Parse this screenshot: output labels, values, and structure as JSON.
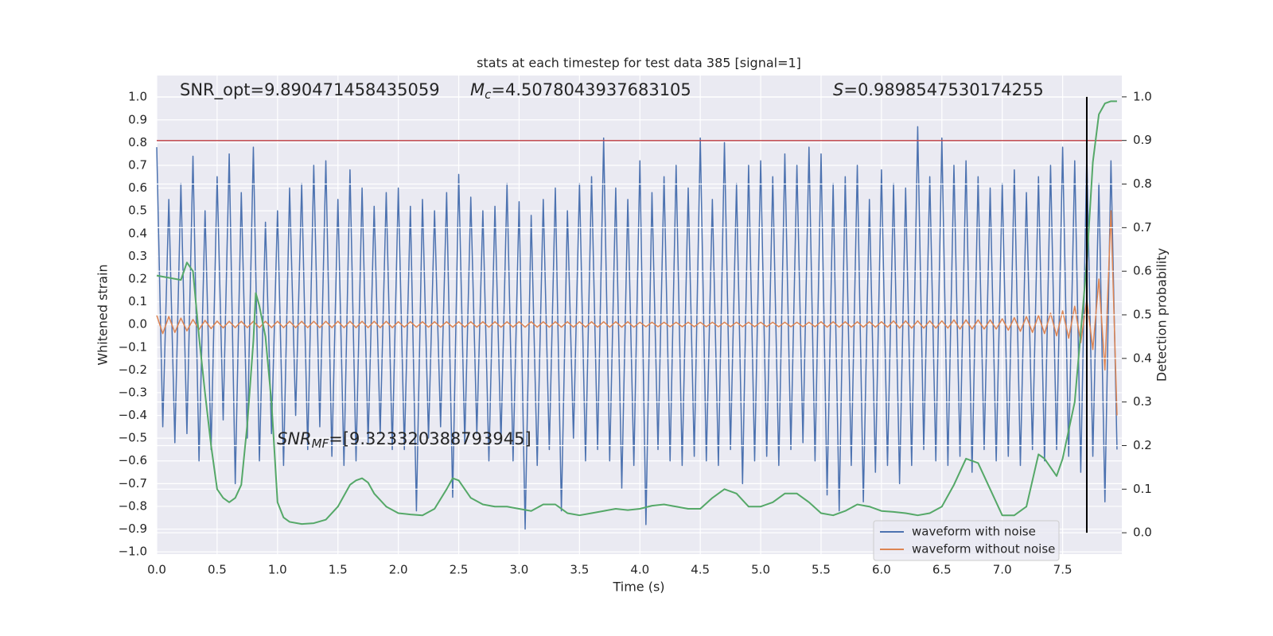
{
  "chart_data": {
    "type": "line",
    "title": "stats at each timestep for test data 385 [signal=1]",
    "xlabel": "Time (s)",
    "ylabel": "Whitened strain",
    "y2label": "Detection probability",
    "grid": true,
    "legend": "lower right",
    "xlim": [
      0,
      7.99
    ],
    "ylim": [
      -1.01,
      1.095
    ],
    "y2lim": [
      -0.049,
      1.049
    ],
    "xticks": [
      {
        "value": 0,
        "label": "0.0"
      },
      {
        "value": 0.5,
        "label": "0.5"
      },
      {
        "value": 1,
        "label": "1.0"
      },
      {
        "value": 1.5,
        "label": "1.5"
      },
      {
        "value": 2,
        "label": "2.0"
      },
      {
        "value": 2.5,
        "label": "2.5"
      },
      {
        "value": 3,
        "label": "3.0"
      },
      {
        "value": 3.5,
        "label": "3.5"
      },
      {
        "value": 4,
        "label": "4.0"
      },
      {
        "value": 4.5,
        "label": "4.5"
      },
      {
        "value": 5,
        "label": "5.0"
      },
      {
        "value": 5.5,
        "label": "5.5"
      },
      {
        "value": 6,
        "label": "6.0"
      },
      {
        "value": 6.5,
        "label": "6.5"
      },
      {
        "value": 7,
        "label": "7.0"
      },
      {
        "value": 7.5,
        "label": "7.5"
      }
    ],
    "yticks": [
      {
        "value": -1,
        "label": "−1.0"
      },
      {
        "value": -0.9,
        "label": "−0.9"
      },
      {
        "value": -0.8,
        "label": "−0.8"
      },
      {
        "value": -0.7,
        "label": "−0.7"
      },
      {
        "value": -0.6,
        "label": "−0.6"
      },
      {
        "value": -0.5,
        "label": "−0.5"
      },
      {
        "value": -0.4,
        "label": "−0.4"
      },
      {
        "value": -0.3,
        "label": "−0.3"
      },
      {
        "value": -0.2,
        "label": "−0.2"
      },
      {
        "value": -0.1,
        "label": "−0.1"
      },
      {
        "value": 0,
        "label": "0.0"
      },
      {
        "value": 0.1,
        "label": "0.1"
      },
      {
        "value": 0.2,
        "label": "0.2"
      },
      {
        "value": 0.3,
        "label": "0.3"
      },
      {
        "value": 0.4,
        "label": "0.4"
      },
      {
        "value": 0.5,
        "label": "0.5"
      },
      {
        "value": 0.6,
        "label": "0.6"
      },
      {
        "value": 0.7,
        "label": "0.7"
      },
      {
        "value": 0.8,
        "label": "0.8"
      },
      {
        "value": 0.9,
        "label": "0.9"
      },
      {
        "value": 1,
        "label": "1.0"
      }
    ],
    "y2ticks": [
      {
        "value": 0,
        "label": "0.0"
      },
      {
        "value": 0.1,
        "label": "0.1"
      },
      {
        "value": 0.2,
        "label": "0.2"
      },
      {
        "value": 0.3,
        "label": "0.3"
      },
      {
        "value": 0.4,
        "label": "0.4"
      },
      {
        "value": 0.5,
        "label": "0.5"
      },
      {
        "value": 0.6,
        "label": "0.6"
      },
      {
        "value": 0.7,
        "label": "0.7"
      },
      {
        "value": 0.8,
        "label": "0.8"
      },
      {
        "value": 0.9,
        "label": "0.9"
      },
      {
        "value": 1,
        "label": "1.0"
      }
    ],
    "x": [
      0,
      0.05,
      0.1,
      0.15,
      0.2,
      0.25,
      0.3,
      0.35,
      0.4,
      0.45,
      0.5,
      0.55,
      0.6,
      0.65,
      0.7,
      0.75,
      0.8,
      0.85,
      0.9,
      0.95,
      1,
      1.05,
      1.1,
      1.15,
      1.2,
      1.25,
      1.3,
      1.35,
      1.4,
      1.45,
      1.5,
      1.55,
      1.6,
      1.65,
      1.7,
      1.75,
      1.8,
      1.85,
      1.9,
      1.95,
      2,
      2.05,
      2.1,
      2.15,
      2.2,
      2.25,
      2.3,
      2.35,
      2.4,
      2.45,
      2.5,
      2.55,
      2.6,
      2.65,
      2.7,
      2.75,
      2.8,
      2.85,
      2.9,
      2.95,
      3,
      3.05,
      3.1,
      3.15,
      3.2,
      3.25,
      3.3,
      3.35,
      3.4,
      3.45,
      3.5,
      3.55,
      3.6,
      3.65,
      3.7,
      3.75,
      3.8,
      3.85,
      3.9,
      3.95,
      4,
      4.05,
      4.1,
      4.15,
      4.2,
      4.25,
      4.3,
      4.35,
      4.4,
      4.45,
      4.5,
      4.55,
      4.6,
      4.65,
      4.7,
      4.75,
      4.8,
      4.85,
      4.9,
      4.95,
      5,
      5.05,
      5.1,
      5.15,
      5.2,
      5.25,
      5.3,
      5.35,
      5.4,
      5.45,
      5.5,
      5.55,
      5.6,
      5.65,
      5.7,
      5.75,
      5.8,
      5.85,
      5.9,
      5.95,
      6,
      6.05,
      6.1,
      6.15,
      6.2,
      6.25,
      6.3,
      6.35,
      6.4,
      6.45,
      6.5,
      6.55,
      6.6,
      6.65,
      6.7,
      6.75,
      6.8,
      6.85,
      6.9,
      6.95,
      7,
      7.05,
      7.1,
      7.15,
      7.2,
      7.25,
      7.3,
      7.35,
      7.4,
      7.45,
      7.5,
      7.55,
      7.6,
      7.65,
      7.7,
      7.75,
      7.8,
      7.85,
      7.9,
      7.95
    ],
    "series": [
      {
        "name": "waveform with noise",
        "color": "#4c72b0",
        "values": [
          0.78,
          -0.45,
          0.55,
          -0.52,
          0.62,
          -0.48,
          0.74,
          -0.6,
          0.5,
          -0.55,
          0.65,
          -0.42,
          0.75,
          -0.7,
          0.58,
          -0.5,
          0.78,
          -0.6,
          0.45,
          -0.48,
          0.5,
          -0.62,
          0.6,
          -0.4,
          0.62,
          -0.55,
          0.7,
          -0.45,
          0.72,
          -0.58,
          0.55,
          -0.62,
          0.68,
          -0.6,
          0.6,
          -0.52,
          0.52,
          -0.48,
          0.58,
          -0.55,
          0.6,
          -0.55,
          0.52,
          -0.82,
          0.55,
          -0.5,
          0.5,
          -0.45,
          0.58,
          -0.76,
          0.66,
          -0.52,
          0.56,
          -0.48,
          0.5,
          -0.6,
          0.52,
          -0.52,
          0.62,
          -0.6,
          0.54,
          -0.9,
          0.48,
          -0.62,
          0.55,
          -0.55,
          0.6,
          -0.82,
          0.5,
          -0.5,
          0.62,
          -0.6,
          0.65,
          -0.55,
          0.82,
          -0.6,
          0.6,
          -0.72,
          0.55,
          -0.62,
          0.72,
          -0.88,
          0.58,
          -0.55,
          0.65,
          -0.6,
          0.7,
          -0.62,
          0.6,
          -0.58,
          0.82,
          -0.6,
          0.55,
          -0.62,
          0.8,
          -0.55,
          0.62,
          -0.7,
          0.7,
          -0.6,
          0.72,
          -0.58,
          0.65,
          -0.62,
          0.75,
          -0.55,
          0.7,
          -0.52,
          0.78,
          -0.6,
          0.75,
          -0.75,
          0.62,
          -0.82,
          0.65,
          -0.62,
          0.7,
          -0.78,
          0.55,
          -0.65,
          0.68,
          -0.62,
          0.62,
          -0.7,
          0.6,
          -0.62,
          0.87,
          -0.55,
          0.65,
          -0.6,
          0.82,
          -0.62,
          0.7,
          -0.58,
          0.72,
          -0.65,
          0.65,
          -0.55,
          0.6,
          -0.6,
          0.62,
          -0.58,
          0.68,
          -0.62,
          0.58,
          -0.55,
          0.65,
          -0.6,
          0.7,
          -0.55,
          0.78,
          -0.58,
          0.72,
          -0.65,
          0.75,
          -0.58,
          0.62,
          -0.78,
          0.72,
          -0.55
        ]
      },
      {
        "name": "waveform without noise",
        "color": "#dd8452",
        "values": [
          0.04,
          -0.04,
          0.035,
          -0.035,
          0.028,
          -0.028,
          0.022,
          -0.022,
          0.018,
          -0.018,
          0.015,
          -0.015,
          0.014,
          -0.014,
          0.014,
          -0.014,
          0.014,
          -0.014,
          0.014,
          -0.014,
          0.014,
          -0.014,
          0.014,
          -0.014,
          0.014,
          -0.014,
          0.014,
          -0.014,
          0.014,
          -0.014,
          0.014,
          -0.014,
          0.014,
          -0.014,
          0.014,
          -0.014,
          0.014,
          -0.014,
          0.014,
          -0.014,
          0.012,
          -0.012,
          0.012,
          -0.012,
          0.012,
          -0.012,
          0.012,
          -0.012,
          0.012,
          -0.012,
          0.012,
          -0.012,
          0.012,
          -0.012,
          0.012,
          -0.012,
          0.012,
          -0.012,
          0.012,
          -0.012,
          0.012,
          -0.012,
          0.012,
          -0.012,
          0.012,
          -0.012,
          0.012,
          -0.012,
          0.012,
          -0.012,
          0.012,
          -0.012,
          0.012,
          -0.012,
          0.012,
          -0.012,
          0.012,
          -0.012,
          0.012,
          -0.012,
          0.01,
          -0.01,
          0.01,
          -0.01,
          0.01,
          -0.01,
          0.01,
          -0.01,
          0.01,
          -0.01,
          0.01,
          -0.01,
          0.01,
          -0.01,
          0.01,
          -0.01,
          0.01,
          -0.01,
          0.01,
          -0.01,
          0.01,
          -0.01,
          0.01,
          -0.01,
          0.01,
          -0.01,
          0.01,
          -0.01,
          0.01,
          -0.01,
          0.012,
          -0.012,
          0.012,
          -0.012,
          0.012,
          -0.012,
          0.012,
          -0.012,
          0.012,
          -0.012,
          0.012,
          -0.012,
          0.016,
          -0.016,
          0.016,
          -0.016,
          0.016,
          -0.016,
          0.016,
          -0.016,
          0.016,
          -0.016,
          0.02,
          -0.02,
          0.02,
          -0.02,
          0.02,
          -0.02,
          0.02,
          -0.02,
          0.025,
          -0.025,
          0.03,
          -0.03,
          0.035,
          -0.035,
          0.04,
          -0.04,
          0.05,
          -0.05,
          0.06,
          -0.06,
          0.08,
          -0.08,
          0.11,
          -0.11,
          0.2,
          -0.2,
          0.5,
          -0.4
        ]
      },
      {
        "color": "#55a868",
        "axis": "y2",
        "x": [
          0,
          0.1,
          0.2,
          0.25,
          0.3,
          0.35,
          0.4,
          0.45,
          0.5,
          0.55,
          0.6,
          0.65,
          0.7,
          0.75,
          0.8,
          0.82,
          0.85,
          0.9,
          0.95,
          1,
          1.05,
          1.1,
          1.2,
          1.3,
          1.4,
          1.5,
          1.6,
          1.65,
          1.7,
          1.75,
          1.8,
          1.9,
          2,
          2.1,
          2.2,
          2.3,
          2.4,
          2.45,
          2.5,
          2.6,
          2.7,
          2.8,
          2.9,
          3,
          3.1,
          3.2,
          3.3,
          3.35,
          3.4,
          3.5,
          3.6,
          3.7,
          3.8,
          3.9,
          4,
          4.1,
          4.2,
          4.3,
          4.4,
          4.5,
          4.6,
          4.7,
          4.8,
          4.9,
          5,
          5.1,
          5.2,
          5.3,
          5.4,
          5.5,
          5.6,
          5.7,
          5.8,
          5.9,
          6,
          6.1,
          6.2,
          6.3,
          6.4,
          6.5,
          6.6,
          6.7,
          6.8,
          6.9,
          7,
          7.1,
          7.2,
          7.3,
          7.35,
          7.45,
          7.5,
          7.6,
          7.7,
          7.75,
          7.8,
          7.85,
          7.9,
          7.95
        ],
        "values": [
          0.59,
          0.585,
          0.58,
          0.62,
          0.6,
          0.45,
          0.32,
          0.2,
          0.1,
          0.08,
          0.07,
          0.08,
          0.11,
          0.25,
          0.44,
          0.55,
          0.52,
          0.45,
          0.3,
          0.07,
          0.035,
          0.025,
          0.02,
          0.022,
          0.03,
          0.06,
          0.11,
          0.12,
          0.125,
          0.115,
          0.09,
          0.06,
          0.045,
          0.042,
          0.04,
          0.055,
          0.1,
          0.125,
          0.12,
          0.08,
          0.065,
          0.06,
          0.06,
          0.055,
          0.05,
          0.065,
          0.065,
          0.055,
          0.045,
          0.04,
          0.045,
          0.05,
          0.055,
          0.052,
          0.055,
          0.062,
          0.065,
          0.06,
          0.055,
          0.055,
          0.08,
          0.1,
          0.09,
          0.06,
          0.06,
          0.07,
          0.09,
          0.09,
          0.07,
          0.045,
          0.04,
          0.05,
          0.065,
          0.06,
          0.05,
          0.048,
          0.045,
          0.04,
          0.045,
          0.06,
          0.11,
          0.17,
          0.16,
          0.1,
          0.04,
          0.04,
          0.06,
          0.18,
          0.17,
          0.13,
          0.17,
          0.3,
          0.62,
          0.85,
          0.96,
          0.985,
          0.99,
          0.99
        ]
      }
    ],
    "hlines": [
      {
        "y": 0.9,
        "axis": "y2",
        "color": "#c44e52"
      }
    ],
    "vlines": [
      {
        "x": 7.7,
        "ymin": 0,
        "ymax": 1,
        "axis": "y2",
        "color": "#000000"
      }
    ],
    "annotations": [
      {
        "parts": [
          "SNR_opt=9.890471458435059"
        ]
      },
      {
        "parts": [
          "M",
          "c",
          "=4.5078043937683105"
        ]
      },
      {
        "parts": [
          "S",
          "=0.9898547530174255"
        ]
      },
      {
        "parts": [
          "SNR",
          "MF",
          "=[9.323320388793945]"
        ]
      }
    ]
  }
}
